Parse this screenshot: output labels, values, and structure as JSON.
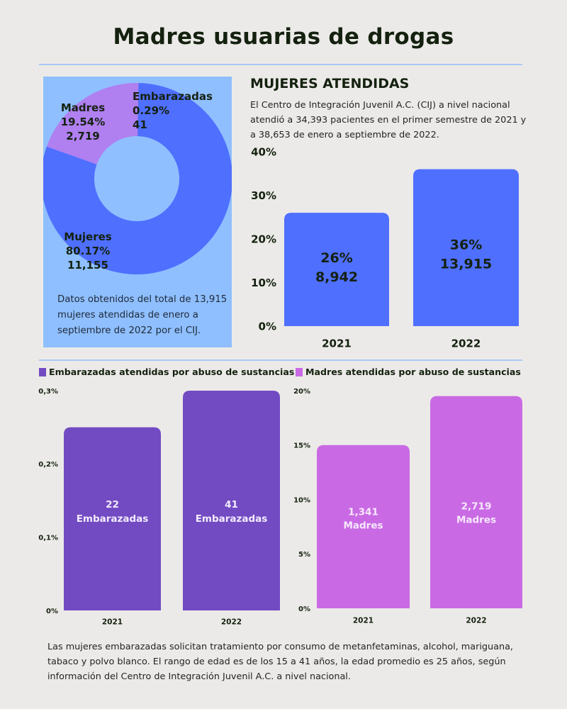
{
  "title": "Madres usuarias de drogas",
  "colors": {
    "background": "#ECEAE8",
    "panel": "#8FBFFE",
    "mujeres": "#4F6FFF",
    "madres": "#B07FF0",
    "embarazadas_donut": "#B07FF0",
    "embarazadas_bar": "#724BC2",
    "madres_bar": "#C96AE4",
    "divider": "#A9C9F5",
    "text": "#14210F"
  },
  "donut": {
    "note": "Datos obtenidos del total de 13,915 mujeres atendidas de enero a septiembre de 2022 por el CIJ.",
    "labels": [
      {
        "name": "Embarazadas",
        "percent": "0.29%",
        "count": "41"
      },
      {
        "name": "Madres",
        "percent": "19.54%",
        "count": "2,719"
      },
      {
        "name": "Mujeres",
        "percent": "80.17%",
        "count": "11,155"
      }
    ]
  },
  "mujeres_atendidas": {
    "heading": "MUJERES ATENDIDAS",
    "description": "El Centro de Integración Juvenil A.C. (CIJ) a nivel nacional atendió a 34,393 pacientes en el primer semestre de 2021 y a 38,653 de enero a septiembre de 2022."
  },
  "legends": {
    "embarazadas": "Embarazadas atendidas por abuso de sustancias",
    "madres": "Madres atendidas por abuso de sustancias"
  },
  "footer": "Las mujeres embarazadas solicitan tratamiento por consumo de metanfetaminas, alcohol, mariguana, tabaco y polvo blanco. El rango de edad es de los 15 a 41 años, la edad promedio es 25 años, según información del Centro de Integración Juvenil A.C. a nivel nacional.",
  "chart_data": [
    {
      "id": "donut",
      "type": "pie",
      "title": "",
      "categories": [
        "Embarazadas",
        "Madres",
        "Mujeres"
      ],
      "values": [
        0.29,
        19.54,
        80.17
      ],
      "counts": [
        41,
        2719,
        11155
      ],
      "total": 13915,
      "donut": true
    },
    {
      "id": "mujeres",
      "type": "bar",
      "title": "MUJERES ATENDIDAS",
      "categories": [
        "2021",
        "2022"
      ],
      "values": [
        26,
        36
      ],
      "data_labels": [
        [
          "26%",
          "8,942"
        ],
        [
          "36%",
          "13,915"
        ]
      ],
      "yticks": [
        "0%",
        "10%",
        "20%",
        "30%",
        "40%"
      ],
      "ytick_values": [
        0,
        10,
        20,
        30,
        40
      ],
      "ylim": [
        0,
        40
      ],
      "xlabel": "",
      "ylabel": "",
      "grid": false
    },
    {
      "id": "embarazadas",
      "type": "bar",
      "title": "Embarazadas atendidas por abuso de sustancias",
      "categories": [
        "2021",
        "2022"
      ],
      "values": [
        0.25,
        0.3
      ],
      "data_labels": [
        [
          "22",
          "Embarazadas"
        ],
        [
          "41",
          "Embarazadas"
        ]
      ],
      "yticks": [
        "0%",
        "0,1%",
        "0,2%",
        "0,3%"
      ],
      "ytick_values": [
        0,
        0.1,
        0.2,
        0.3
      ],
      "ylim": [
        0,
        0.3
      ],
      "legend": "top-left",
      "grid": false
    },
    {
      "id": "madres",
      "type": "bar",
      "title": "Madres atendidas por abuso de sustancias",
      "categories": [
        "2021",
        "2022"
      ],
      "values": [
        15,
        19.5
      ],
      "data_labels": [
        [
          "1,341",
          "Madres"
        ],
        [
          "2,719",
          "Madres"
        ]
      ],
      "yticks": [
        "0%",
        "5%",
        "10%",
        "15%",
        "20%"
      ],
      "ytick_values": [
        0,
        5,
        10,
        15,
        20
      ],
      "ylim": [
        0,
        20
      ],
      "legend": "top-left",
      "grid": false
    }
  ]
}
